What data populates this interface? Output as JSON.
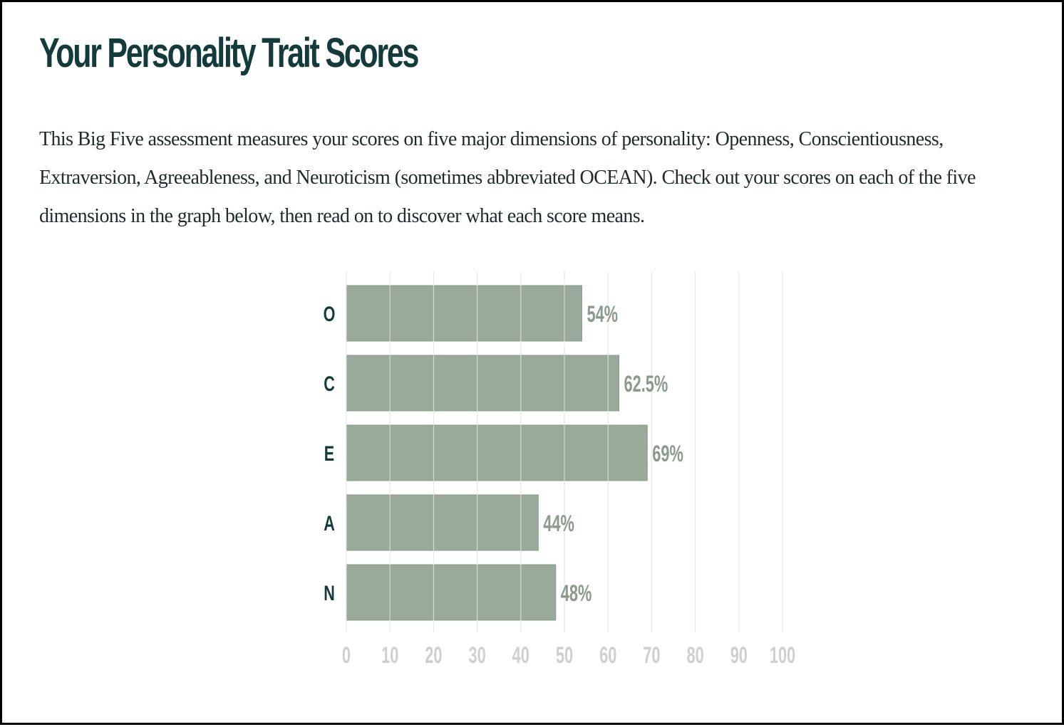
{
  "page": {
    "title": "Your Personality Trait Scores",
    "intro": "This Big Five assessment measures your scores on five major dimensions of personality: Openness, Conscientiousness, Extraversion, Agreeableness, and Neuroticism (sometimes abbreviated OCEAN). Check out your scores on each of the five dimensions in the graph below, then read on to discover what each score means."
  },
  "colors": {
    "bar": "#99a99a",
    "bar_border": "#8a9b8b",
    "value_label": "#8a9a8b",
    "category_label": "#143b3c",
    "tick_label": "#cfcfcf",
    "grid": "#e3e3e3",
    "title": "#143b3c"
  },
  "chart_data": {
    "type": "bar",
    "orientation": "horizontal",
    "categories": [
      "O",
      "C",
      "E",
      "A",
      "N"
    ],
    "values": [
      54,
      62.5,
      69,
      44,
      48
    ],
    "value_labels": [
      "54%",
      "62.5%",
      "69%",
      "44%",
      "48%"
    ],
    "xlim": [
      0,
      100
    ],
    "xticks": [
      0,
      10,
      20,
      30,
      40,
      50,
      60,
      70,
      80,
      90,
      100
    ],
    "title": "",
    "xlabel": "",
    "ylabel": "",
    "grid": true,
    "legend": "none"
  }
}
